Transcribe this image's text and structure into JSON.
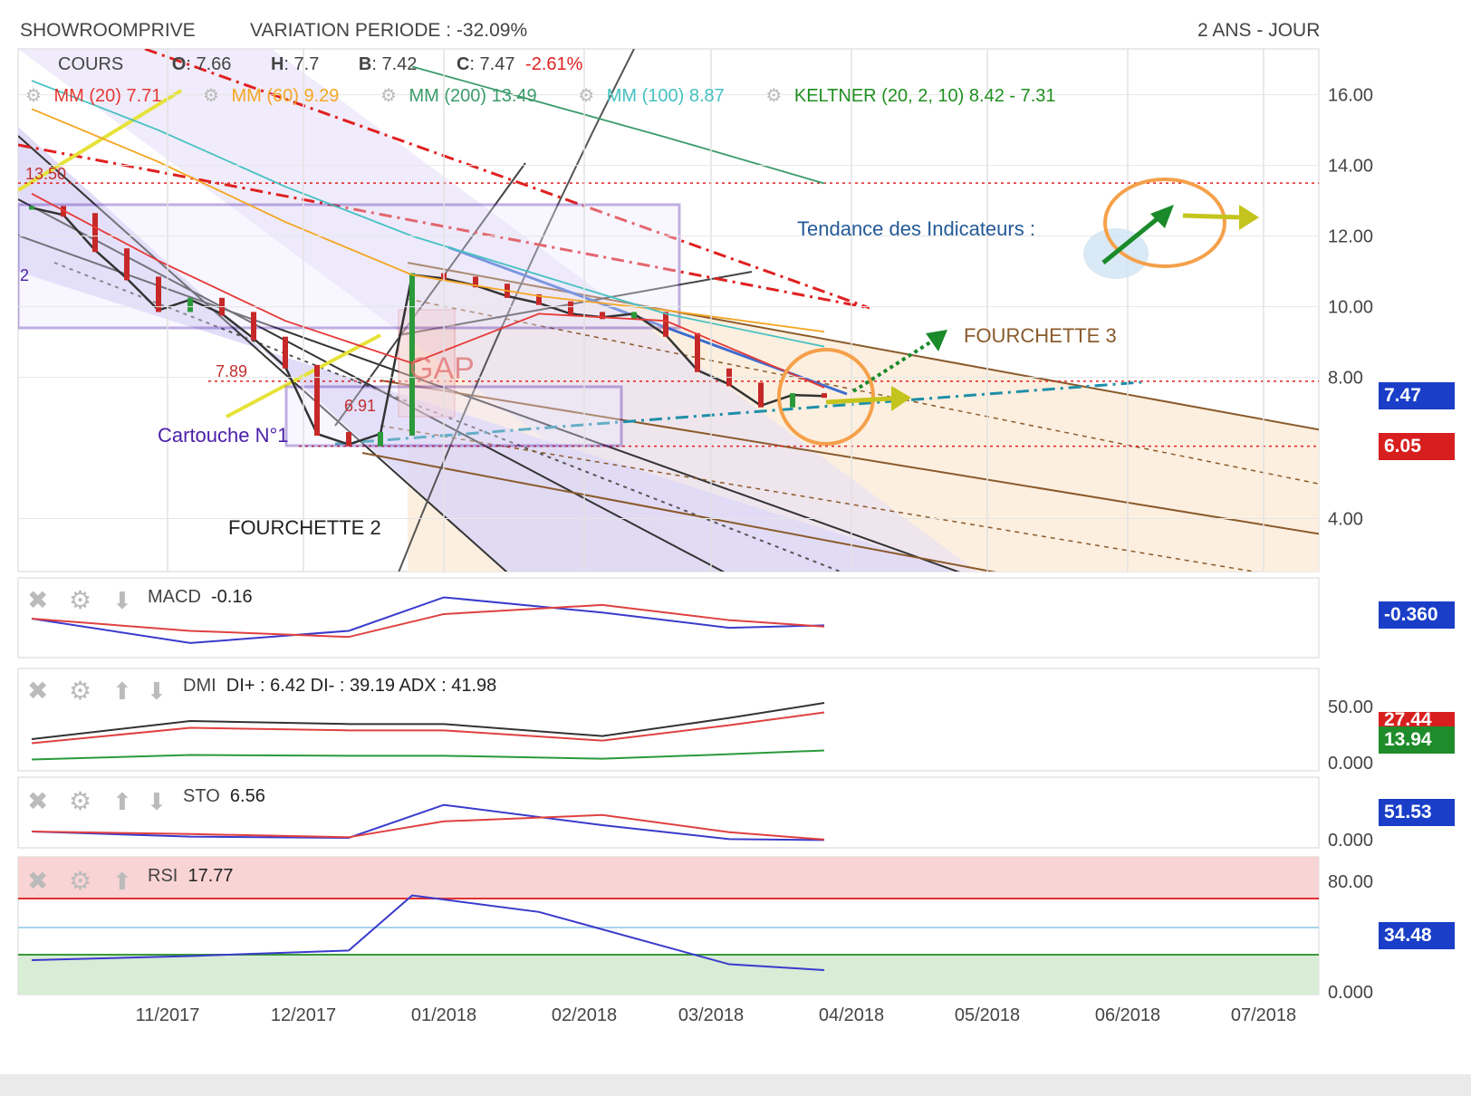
{
  "header": {
    "title": "SHOWROOMPRIVE",
    "variation": "VARIATION PERIODE : -32.09%",
    "period": "2 ANS - JOUR"
  },
  "legend": {
    "cours": "COURS",
    "o_label": "O",
    "o_value": ": 7.66",
    "h_label": "H",
    "h_value": ": 7.7",
    "b_label": "B",
    "b_value": ": 7.42",
    "c_label": "C",
    "c_value": ": 7.47",
    "change": "-2.61%",
    "mm20": "MM (20) 7.71",
    "mm60": "MM (60) 9.29",
    "mm200": "MM (200) 13.49",
    "mm100": "MM (100) 8.87",
    "keltner": "KELTNER (20, 2, 10) 8.42 - 7.31"
  },
  "annotations": {
    "tendance": "Tendance des Indicateurs :",
    "fourchette3": "FOURCHETTE 3",
    "fourchette2": "FOURCHETTE 2",
    "cartouche": "Cartouche N°1",
    "gap": "GAP",
    "level_1350": "13.50",
    "level_789": "7.89",
    "level_691": "6.91",
    "level_2": "2"
  },
  "price_tags": {
    "last": "7.47",
    "support": "6.05"
  },
  "panels": {
    "macd": {
      "name": "MACD",
      "value": "-0.16",
      "tag": "-0.360"
    },
    "dmi": {
      "name": "DMI",
      "value": "DI+ : 6.42 DI- : 39.19 ADX : 41.98",
      "tag_top": "27.44",
      "tag_bottom": "13.94",
      "tick_top": "50.00",
      "tick_bottom": "0.000"
    },
    "sto": {
      "name": "STO",
      "value": "6.56",
      "tag": "51.53",
      "tick_bottom": "0.000"
    },
    "rsi": {
      "name": "RSI",
      "value": "17.77",
      "tag": "34.48",
      "tick_top": "80.00",
      "tick_bottom": "0.000"
    }
  },
  "colors": {
    "mm20": "#e53935",
    "mm60": "#f5a623",
    "mm200": "#3a9a6a",
    "mm100": "#45c1c1",
    "keltner": "#1f8f1f",
    "tag_blue": "#1a3ec8",
    "tag_red": "#d81f1f",
    "tag_green": "#1e8c2a"
  },
  "chart_data": {
    "type": "line",
    "title": "SHOWROOMPRIVE",
    "x_ticks": [
      "11/2017",
      "12/2017",
      "01/2018",
      "02/2018",
      "03/2018",
      "04/2018",
      "05/2018",
      "06/2018",
      "07/2018"
    ],
    "y_ticks": [
      "16.00",
      "14.00",
      "12.00",
      "10.00",
      "8.00",
      "4.00"
    ],
    "ylim": [
      2.5,
      17.3
    ],
    "horizontal_levels": [
      13.5,
      7.89,
      6.91,
      6.05
    ],
    "series": [
      {
        "name": "COURS",
        "x": [
          "2017-10-02",
          "2017-10-09",
          "2017-10-16",
          "2017-10-23",
          "2017-10-30",
          "2017-11-06",
          "2017-11-13",
          "2017-11-20",
          "2017-11-27",
          "2017-12-04",
          "2017-12-11",
          "2017-12-18",
          "2017-12-25",
          "2018-01-01",
          "2018-01-08",
          "2018-01-15",
          "2018-01-22",
          "2018-01-29",
          "2018-02-05",
          "2018-02-12",
          "2018-02-19",
          "2018-02-26",
          "2018-03-05",
          "2018-03-12",
          "2018-03-19",
          "2018-03-26"
        ],
        "values": [
          12.8,
          12.6,
          11.6,
          10.8,
          9.9,
          10.2,
          9.8,
          9.1,
          8.3,
          6.4,
          6.1,
          6.4,
          10.9,
          10.8,
          10.6,
          10.3,
          10.1,
          9.8,
          9.7,
          9.8,
          9.2,
          8.2,
          7.8,
          7.2,
          7.5,
          7.47
        ]
      },
      {
        "name": "MM (20)",
        "x": [
          "2017-10-02",
          "2017-10-30",
          "2017-11-27",
          "2017-12-25",
          "2018-01-22",
          "2018-02-19",
          "2018-03-26"
        ],
        "values": [
          13.2,
          11.3,
          9.6,
          8.4,
          9.8,
          9.6,
          7.71
        ]
      },
      {
        "name": "MM (60)",
        "x": [
          "2017-10-02",
          "2017-10-30",
          "2017-11-27",
          "2017-12-25",
          "2018-01-22",
          "2018-02-19",
          "2018-03-26"
        ],
        "values": [
          15.6,
          14.1,
          12.4,
          10.9,
          10.3,
          9.9,
          9.29
        ]
      },
      {
        "name": "MM (100)",
        "x": [
          "2017-10-02",
          "2017-10-30",
          "2017-11-27",
          "2017-12-25",
          "2018-01-22",
          "2018-02-19",
          "2018-03-26"
        ],
        "values": [
          16.4,
          15.0,
          13.4,
          12.0,
          10.9,
          9.8,
          8.87
        ]
      },
      {
        "name": "MM (200)",
        "x": [
          "2017-12-25",
          "2018-01-22",
          "2018-02-19",
          "2018-03-26"
        ],
        "values": [
          16.8,
          15.8,
          14.8,
          13.49
        ]
      }
    ],
    "indicators": {
      "macd": {
        "x": [
          "2017-10-02",
          "2017-11-06",
          "2017-12-11",
          "2018-01-01",
          "2018-02-05",
          "2018-03-05",
          "2018-03-26"
        ],
        "values": [
          -0.05,
          -0.45,
          -0.25,
          0.3,
          0.05,
          -0.2,
          -0.16
        ]
      },
      "dmi_adx": {
        "x": [
          "2017-10-02",
          "2017-11-06",
          "2017-12-11",
          "2018-01-01",
          "2018-02-05",
          "2018-03-05",
          "2018-03-26"
        ],
        "values": [
          18,
          30,
          28,
          28,
          20,
          32,
          41.98
        ]
      },
      "rsi": {
        "x": [
          "2017-10-02",
          "2017-11-06",
          "2017-12-11",
          "2017-12-25",
          "2018-01-22",
          "2018-03-05",
          "2018-03-26"
        ],
        "values": [
          25,
          28,
          32,
          72,
          60,
          22,
          17.77
        ]
      },
      "sto": {
        "x": [
          "2017-10-02",
          "2017-11-06",
          "2017-12-11",
          "2018-01-01",
          "2018-02-05",
          "2018-03-05",
          "2018-03-26"
        ],
        "values": [
          20,
          12,
          10,
          62,
          30,
          8,
          6.56
        ]
      }
    }
  }
}
